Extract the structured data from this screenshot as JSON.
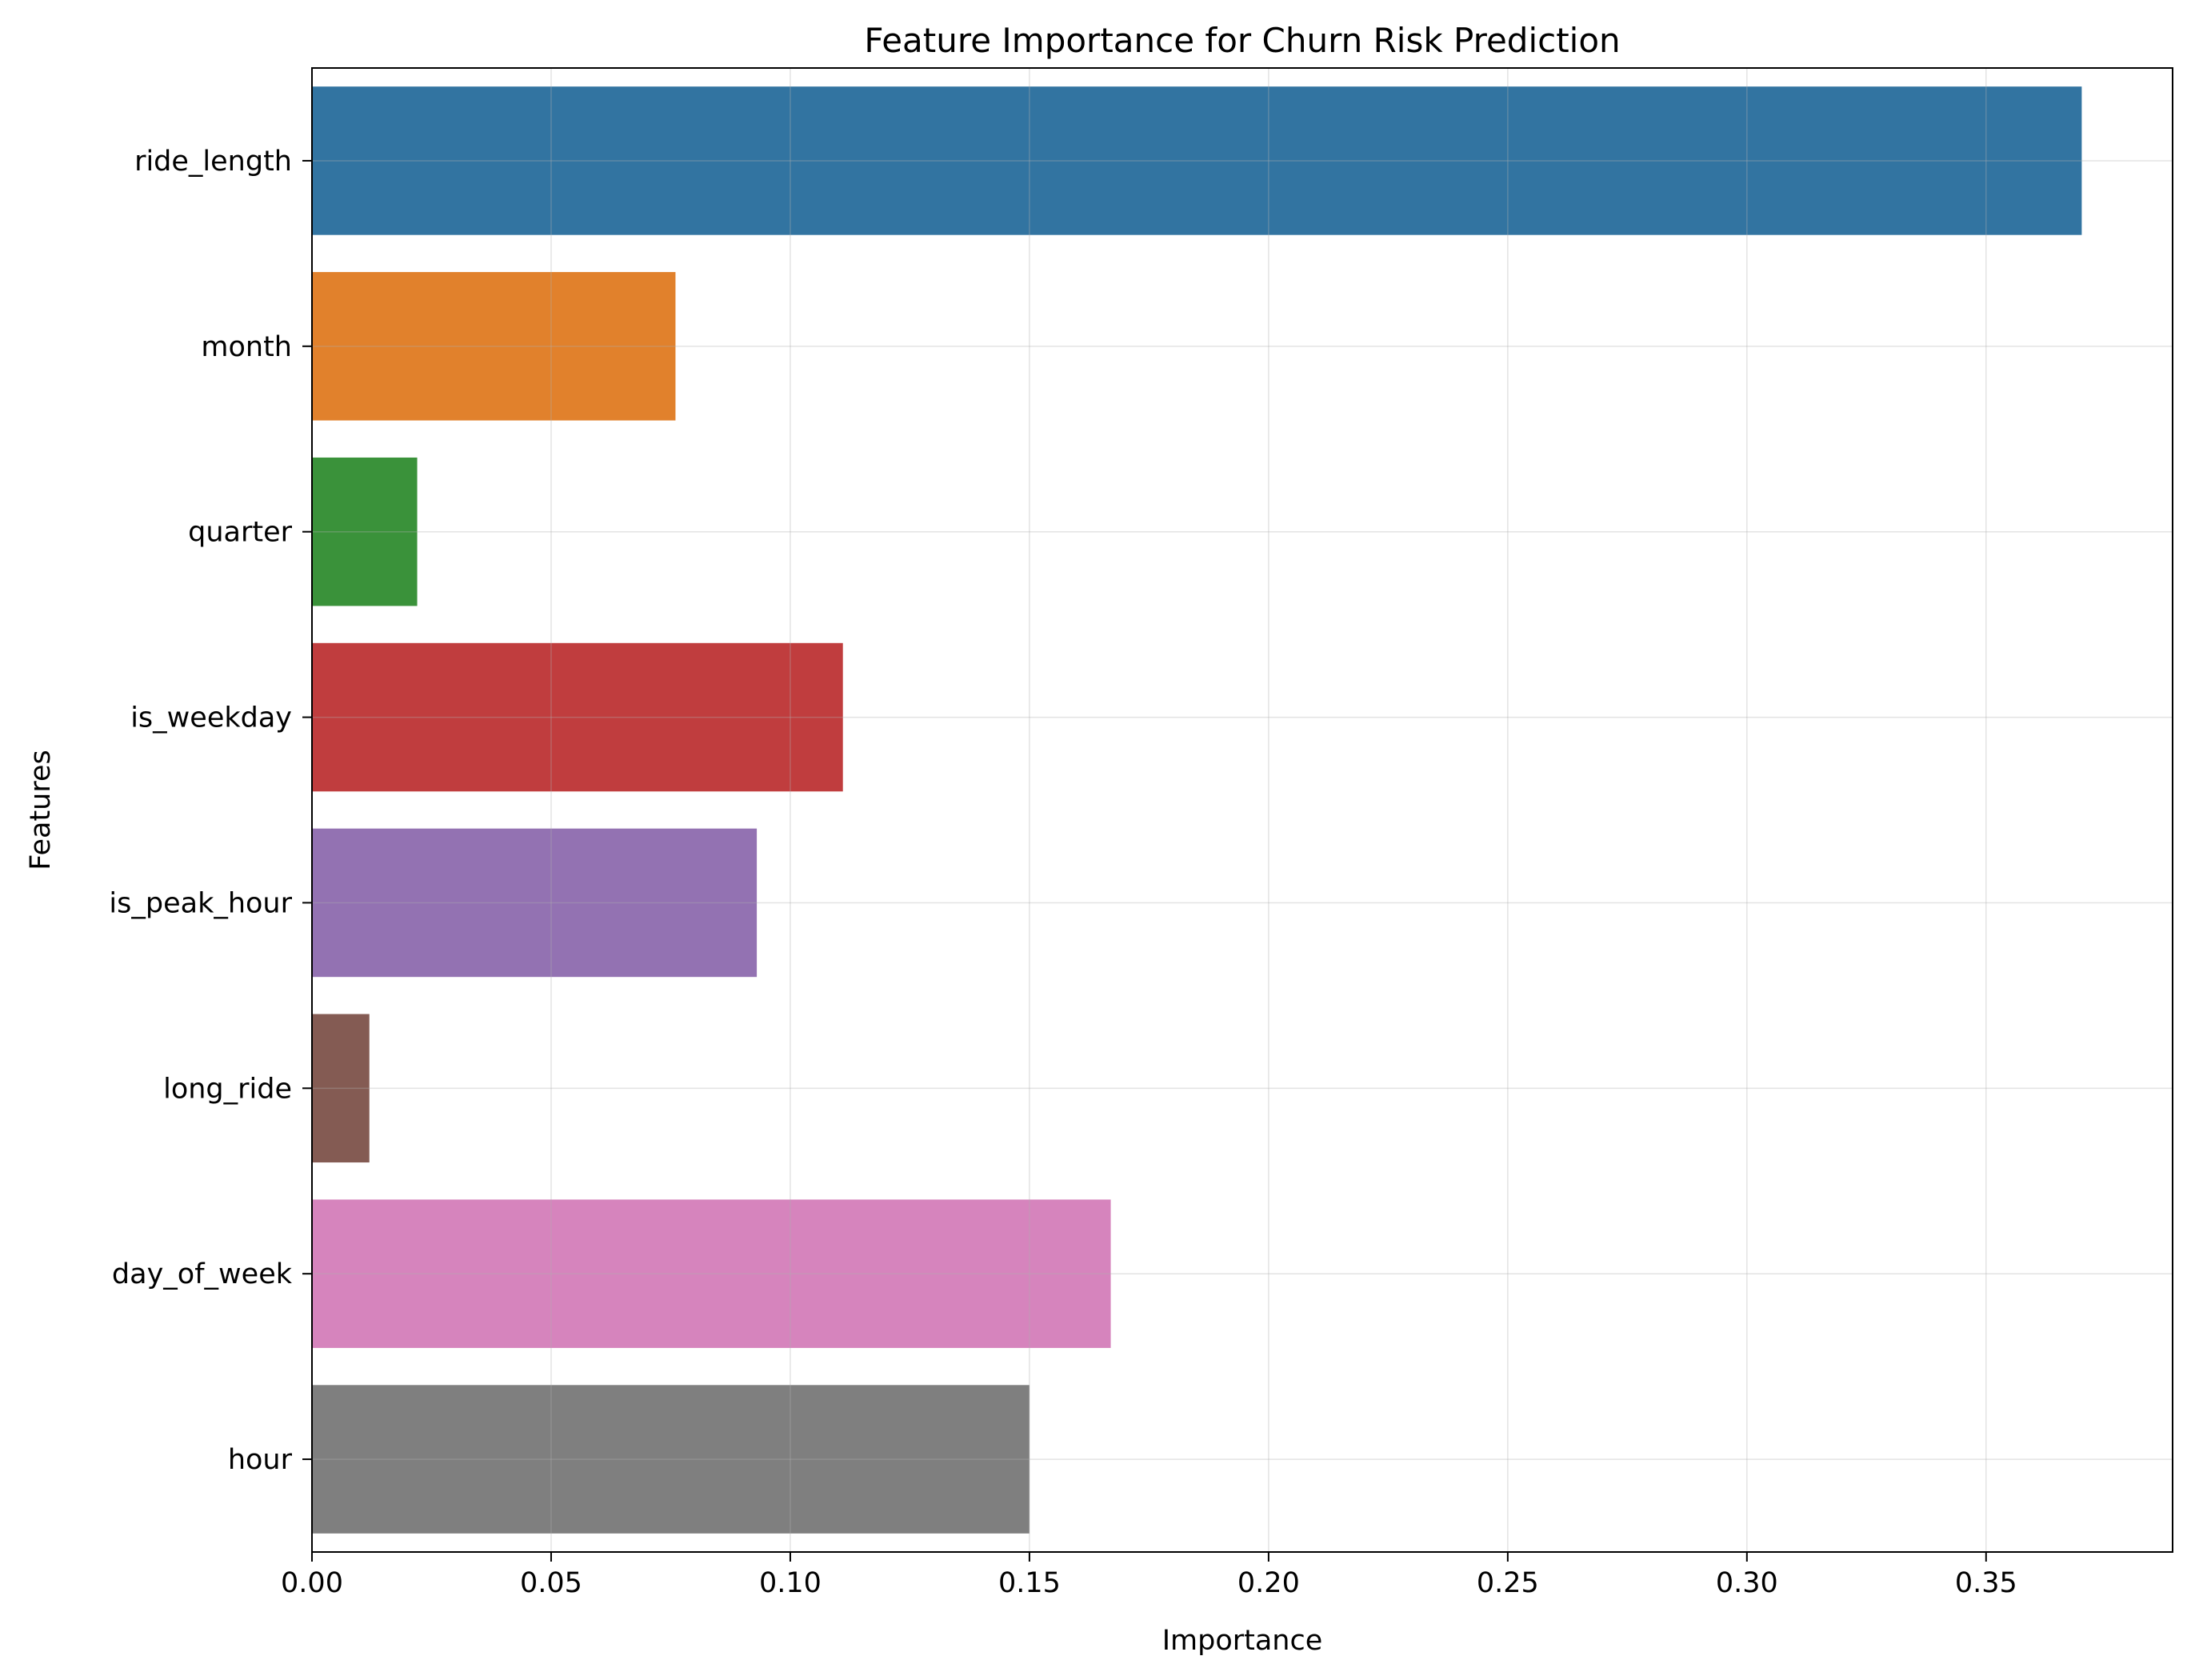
{
  "chart_data": {
    "type": "bar",
    "orientation": "horizontal",
    "title": "Feature Importance for Churn Risk Prediction",
    "xlabel": "Importance",
    "ylabel": "Features",
    "categories": [
      "ride_length",
      "month",
      "quarter",
      "is_weekday",
      "is_peak_hour",
      "long_ride",
      "day_of_week",
      "hour"
    ],
    "values": [
      0.37,
      0.076,
      0.022,
      0.111,
      0.093,
      0.012,
      0.167,
      0.15
    ],
    "colors": [
      "#3274a1",
      "#e1812c",
      "#3a923a",
      "#c03d3e",
      "#9372b2",
      "#845b53",
      "#d684bd",
      "#7f7f7f"
    ],
    "xlim": [
      0,
      0.389
    ],
    "xticks": [
      0.0,
      0.05,
      0.1,
      0.15,
      0.2,
      0.25,
      0.3,
      0.35
    ],
    "xtick_labels": [
      "0.00",
      "0.05",
      "0.10",
      "0.15",
      "0.20",
      "0.25",
      "0.30",
      "0.35"
    ],
    "grid": true
  }
}
